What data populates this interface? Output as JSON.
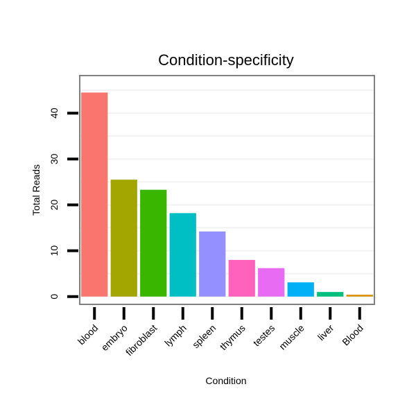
{
  "chart_data": {
    "type": "bar",
    "title": "Condition-specificity",
    "xlabel": "Condition",
    "ylabel": "Total Reads",
    "categories": [
      "blood",
      "embryo",
      "fibroblast",
      "lymph",
      "spleen",
      "thymus",
      "testes",
      "muscle",
      "liver",
      "Blood"
    ],
    "values": [
      44.5,
      25.5,
      23.3,
      18.2,
      14.2,
      8.0,
      6.2,
      3.1,
      1.0,
      0.4
    ],
    "colors": [
      "#f8766d",
      "#a3a500",
      "#39b600",
      "#00bfc4",
      "#9590ff",
      "#ff62bc",
      "#e76bf3",
      "#00b0f6",
      "#00bf7d",
      "#d89000"
    ],
    "yticks": [
      0,
      10,
      20,
      30,
      40
    ],
    "ylim": [
      -1.7,
      48.2
    ],
    "grid": true,
    "legend": "none"
  }
}
